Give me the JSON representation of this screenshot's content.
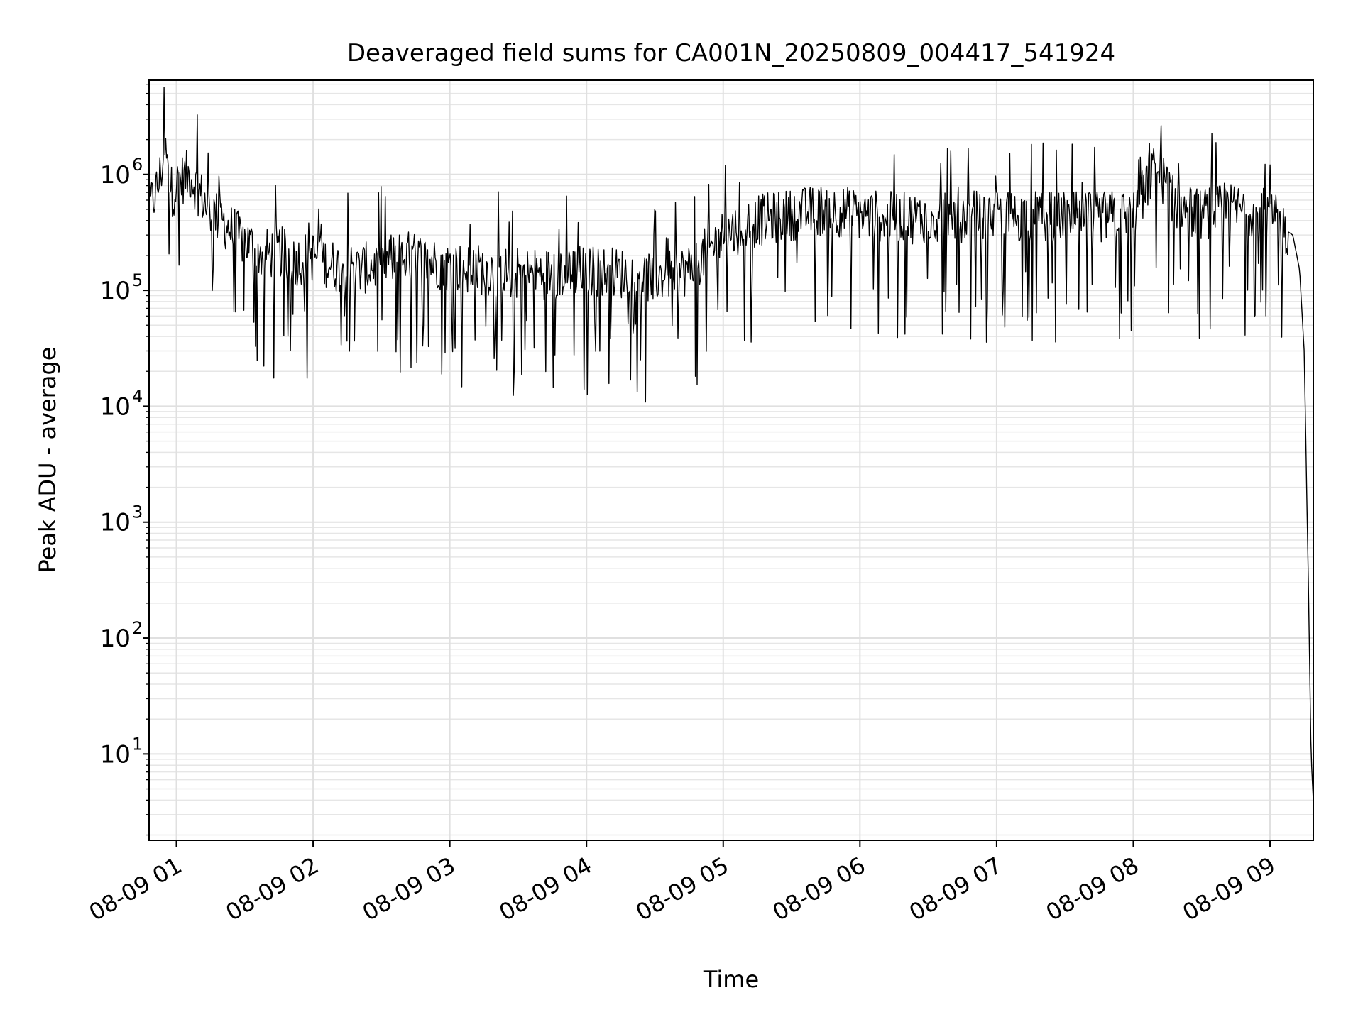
{
  "chart_data": {
    "type": "line",
    "title": "Deaveraged field sums for CA001N_20250809_004417_541924",
    "xlabel": "Time",
    "ylabel": "Peak ADU - average",
    "yscale": "log",
    "grid": true,
    "legend": "none",
    "line_color": "#000000",
    "x_range": [
      "2025-08-09 00:48",
      "2025-08-09 09:19"
    ],
    "ylim": [
      1.8,
      6500000
    ],
    "x_ticks": [
      "08-09 01",
      "08-09 02",
      "08-09 03",
      "08-09 04",
      "08-09 05",
      "08-09 06",
      "08-09 07",
      "08-09 08",
      "08-09 09"
    ],
    "y_ticks": [
      {
        "base": "10",
        "exp": "1"
      },
      {
        "base": "10",
        "exp": "2"
      },
      {
        "base": "10",
        "exp": "3"
      },
      {
        "base": "10",
        "exp": "4"
      },
      {
        "base": "10",
        "exp": "5"
      },
      {
        "base": "10",
        "exp": "6"
      }
    ],
    "series": [
      {
        "x": [
          "2025-08-09 00:48",
          "2025-08-09 00:52",
          "2025-08-09 00:55",
          "2025-08-09 00:58",
          "2025-08-09 01:02",
          "2025-08-09 01:06",
          "2025-08-09 01:10",
          "2025-08-09 01:14",
          "2025-08-09 01:20",
          "2025-08-09 01:26",
          "2025-08-09 01:32",
          "2025-08-09 01:38",
          "2025-08-09 01:45",
          "2025-08-09 01:52",
          "2025-08-09 02:00",
          "2025-08-09 02:10",
          "2025-08-09 02:20",
          "2025-08-09 02:30",
          "2025-08-09 02:40",
          "2025-08-09 02:50",
          "2025-08-09 03:00",
          "2025-08-09 03:15",
          "2025-08-09 03:30",
          "2025-08-09 03:45",
          "2025-08-09 04:00",
          "2025-08-09 04:15",
          "2025-08-09 04:30",
          "2025-08-09 04:45",
          "2025-08-09 05:00",
          "2025-08-09 05:15",
          "2025-08-09 05:30",
          "2025-08-09 05:45",
          "2025-08-09 06:00",
          "2025-08-09 06:20",
          "2025-08-09 06:40",
          "2025-08-09 07:00",
          "2025-08-09 07:20",
          "2025-08-09 07:40",
          "2025-08-09 08:00",
          "2025-08-09 08:10",
          "2025-08-09 08:20",
          "2025-08-09 08:30",
          "2025-08-09 08:40",
          "2025-08-09 08:50",
          "2025-08-09 09:00",
          "2025-08-09 09:05",
          "2025-08-09 09:10",
          "2025-08-09 09:13",
          "2025-08-09 09:15",
          "2025-08-09 09:17",
          "2025-08-09 09:18",
          "2025-08-09 09:19"
        ],
        "y": [
          500000,
          800000,
          1600000,
          700000,
          900000,
          1000000,
          700000,
          500000,
          400000,
          300000,
          250000,
          200000,
          220000,
          180000,
          200000,
          160000,
          150000,
          170000,
          200000,
          180000,
          160000,
          150000,
          140000,
          140000,
          150000,
          140000,
          130000,
          150000,
          300000,
          400000,
          450000,
          500000,
          450000,
          420000,
          430000,
          440000,
          430000,
          420000,
          450000,
          1200000,
          500000,
          450000,
          500000,
          500000,
          450000,
          350000,
          300000,
          150000,
          30000,
          200,
          10,
          4
        ]
      }
    ]
  }
}
